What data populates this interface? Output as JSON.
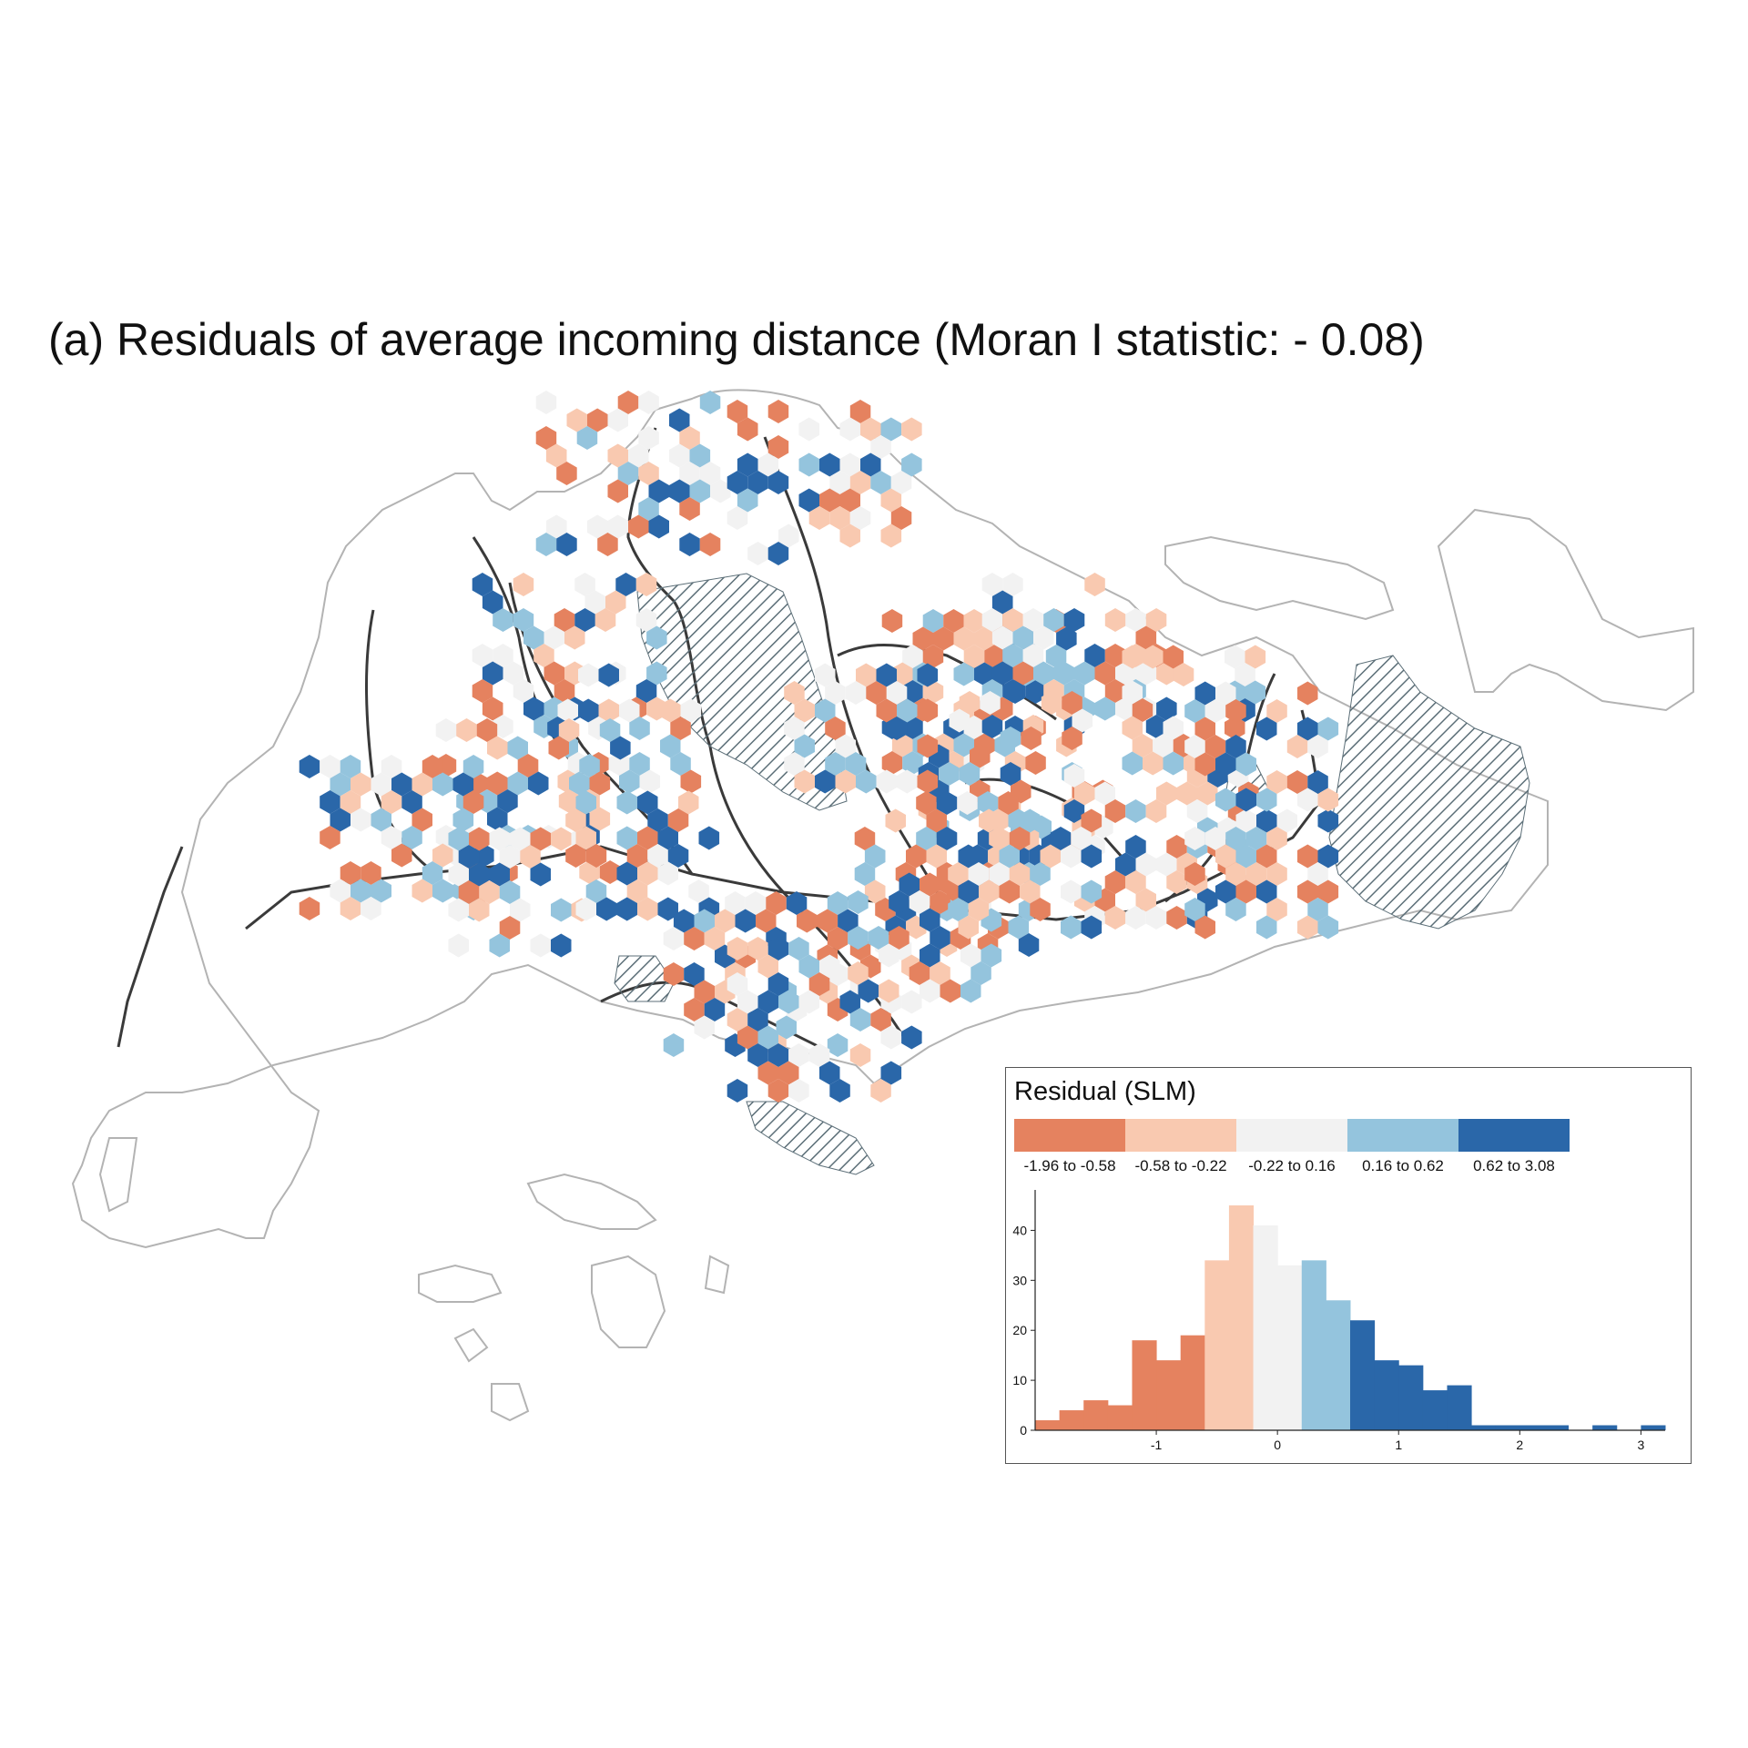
{
  "title": "(a) Residuals of average incoming  distance (Moran I statistic: - 0.08)",
  "colors": {
    "coast": "#b3b3b3",
    "rail": "#3a3a3a",
    "hatch": "#5c6f78",
    "bins": [
      "#e5825f",
      "#f9c9b0",
      "#f2f2f2",
      "#94c4dd",
      "#2a67a9"
    ]
  },
  "legend": {
    "title": "Residual (SLM)",
    "bins": [
      {
        "label": "-1.96 to -0.58"
      },
      {
        "label": "-0.58 to -0.22"
      },
      {
        "label": "-0.22 to 0.16"
      },
      {
        "label": "0.16 to 0.62"
      },
      {
        "label": "0.62 to 3.08"
      }
    ]
  },
  "chart_data": {
    "type": "bar",
    "title": "",
    "xlabel": "",
    "ylabel": "",
    "bin_edges": [
      -2.0,
      -1.8,
      -1.6,
      -1.4,
      -1.2,
      -1.0,
      -0.8,
      -0.6,
      -0.4,
      -0.2,
      0.0,
      0.2,
      0.4,
      0.6,
      0.8,
      1.0,
      1.2,
      1.4,
      1.6,
      1.8,
      2.0,
      2.2,
      2.4,
      2.6,
      2.8,
      3.0,
      3.2
    ],
    "counts": [
      2,
      4,
      6,
      5,
      18,
      14,
      19,
      34,
      45,
      41,
      33,
      34,
      26,
      22,
      14,
      13,
      8,
      9,
      1,
      1,
      1,
      1,
      0,
      1,
      0,
      1
    ],
    "bin_class": [
      0,
      0,
      0,
      0,
      0,
      0,
      0,
      1,
      1,
      2,
      2,
      3,
      3,
      4,
      4,
      4,
      4,
      4,
      4,
      4,
      4,
      4,
      4,
      4,
      4,
      4
    ],
    "x_ticks": [
      -1,
      0,
      1,
      2,
      3
    ],
    "y_ticks": [
      0,
      10,
      20,
      30,
      40
    ],
    "xlim": [
      -2.0,
      3.2
    ],
    "ylim": [
      0,
      47
    ]
  }
}
